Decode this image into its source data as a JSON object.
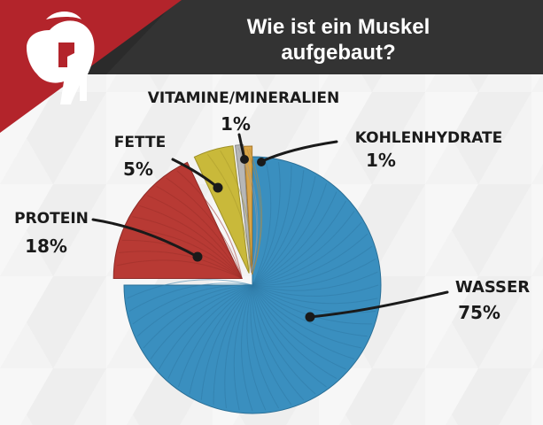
{
  "header": {
    "title_line1": "Wie ist ein Muskel",
    "title_line2": "aufgebaut?"
  },
  "logo": {
    "icon": "spartan-helmet-icon"
  },
  "colors": {
    "wasser": "#3a8fbf",
    "protein": "#b83a34",
    "fette": "#c9b93a",
    "vitamine": "#b7b7b7",
    "kohlenhydrate": "#d9a548",
    "header_dark": "#2b2b2b",
    "header_red": "#b3242b"
  },
  "chart_data": {
    "type": "pie",
    "title": "Wie ist ein Muskel aufgebaut?",
    "categories": [
      "WASSER",
      "PROTEIN",
      "FETTE",
      "VITAMINE/MINERALIEN",
      "KOHLENHYDRATE"
    ],
    "values": [
      75,
      18,
      5,
      1,
      1
    ],
    "value_labels": [
      "75%",
      "18%",
      "5%",
      "1%",
      "1%"
    ],
    "legend": "none",
    "exploded": true
  }
}
